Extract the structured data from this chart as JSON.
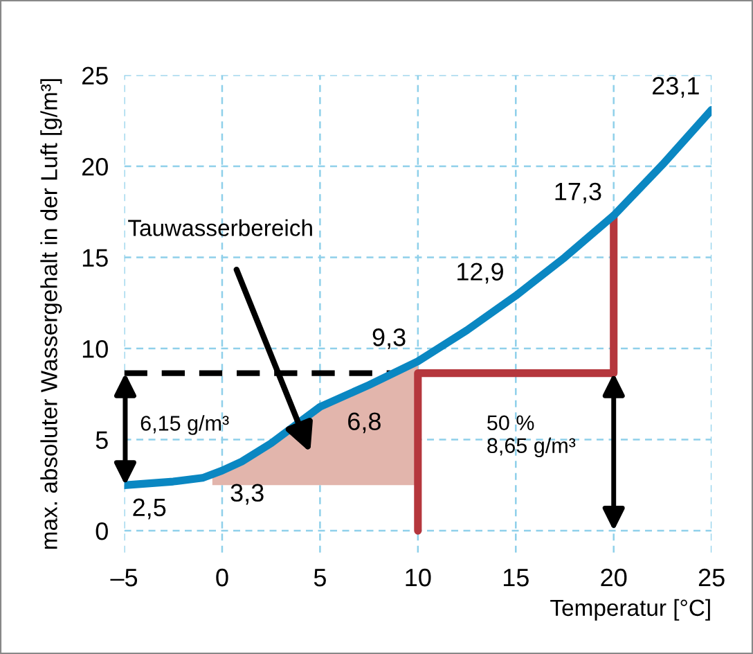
{
  "chart_data": {
    "type": "line",
    "xlabel": "Temperatur [°C]",
    "ylabel": "max. absoluter Wassergehalt in der Luft [g/m³]",
    "xlim": [
      -5,
      25
    ],
    "ylim": [
      -1.2,
      25
    ],
    "xticks": [
      {
        "value": -5,
        "label": "–5"
      },
      0,
      5,
      10,
      15,
      20,
      25
    ],
    "yticks": [
      0,
      5,
      10,
      15,
      20,
      25
    ],
    "grid": true,
    "series": [
      {
        "type": "area",
        "color": "#e2b5ac",
        "x": [
          -0.5,
          0,
          1,
          2.5,
          5,
          7.5,
          10
        ],
        "values": [
          3.1,
          3.3,
          3.8,
          4.8,
          6.8,
          8.0,
          9.3
        ]
      },
      {
        "type": "line",
        "color": "#000000",
        "line_style": "dashed",
        "x": [
          -5,
          8.6
        ],
        "values": [
          8.65,
          8.65
        ]
      },
      {
        "type": "line",
        "color": "#b5373d",
        "x": [
          10,
          10,
          20,
          20
        ],
        "values": [
          0,
          8.65,
          8.65,
          17.3
        ]
      },
      {
        "color": "#0a87c2",
        "x": [
          -5,
          -2.5,
          -1,
          0,
          1,
          2.5,
          5,
          7.5,
          10,
          12.5,
          15,
          17.5,
          20,
          22.5,
          25
        ],
        "values": [
          2.5,
          2.7,
          2.9,
          3.3,
          3.8,
          4.8,
          6.8,
          8.0,
          9.3,
          11.0,
          12.9,
          15.0,
          17.3,
          20.1,
          23.1
        ],
        "value_labels": [
          "2,5",
          null,
          null,
          "3,3",
          null,
          null,
          "6,8",
          null,
          "9,3",
          null,
          "12,9",
          null,
          "17,3",
          null,
          "23,1"
        ]
      }
    ],
    "annotations": [
      "Tauwasserbereich",
      "6,15 g/m³",
      "50 %\n8,65 g/m³"
    ]
  }
}
